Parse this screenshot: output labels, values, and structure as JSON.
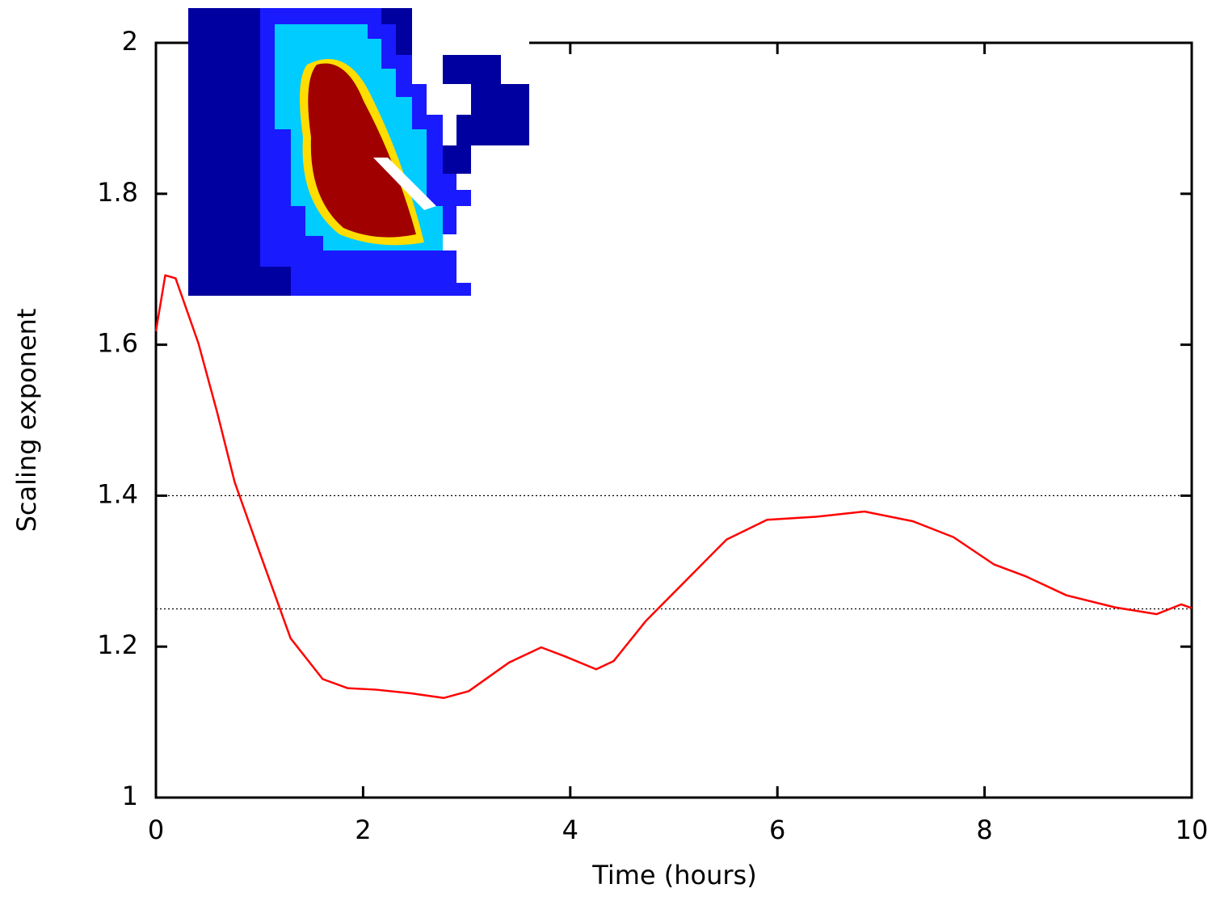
{
  "chart_data": {
    "type": "line",
    "xlabel": "Time (hours)",
    "ylabel": "Scaling exponent",
    "xlim": [
      0,
      10
    ],
    "ylim": [
      1,
      2
    ],
    "xticks": [
      0,
      2,
      4,
      6,
      8,
      10
    ],
    "yticks": [
      1,
      1.2,
      1.4,
      1.6,
      1.8,
      2
    ],
    "reference_lines": [
      1.4,
      1.25
    ],
    "series": [
      {
        "color": "#ff0000",
        "x": [
          0,
          0.09,
          0.19,
          0.41,
          0.59,
          0.76,
          0.99,
          1.3,
          1.61,
          1.85,
          2.12,
          2.47,
          2.78,
          3.02,
          3.41,
          3.72,
          3.95,
          4.25,
          4.42,
          4.73,
          5.12,
          5.51,
          5.9,
          6.37,
          6.84,
          7.31,
          7.7,
          8.09,
          8.4,
          8.79,
          9.26,
          9.66,
          9.9,
          10
        ],
        "values": [
          1.618,
          1.692,
          1.688,
          1.602,
          1.511,
          1.418,
          1.329,
          1.211,
          1.157,
          1.145,
          1.143,
          1.138,
          1.132,
          1.141,
          1.179,
          1.199,
          1.187,
          1.17,
          1.181,
          1.234,
          1.288,
          1.342,
          1.368,
          1.372,
          1.379,
          1.366,
          1.345,
          1.309,
          1.293,
          1.268,
          1.252,
          1.243,
          1.256,
          1.251
        ]
      }
    ]
  }
}
